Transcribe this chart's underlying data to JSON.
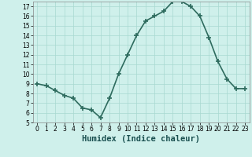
{
  "x": [
    0,
    1,
    2,
    3,
    4,
    5,
    6,
    7,
    8,
    9,
    10,
    11,
    12,
    13,
    14,
    15,
    16,
    17,
    18,
    19,
    20,
    21,
    22,
    23
  ],
  "y": [
    9.0,
    8.8,
    8.3,
    7.8,
    7.5,
    6.5,
    6.3,
    5.5,
    7.5,
    10.0,
    12.0,
    14.0,
    15.5,
    16.0,
    16.5,
    17.5,
    17.5,
    17.0,
    16.0,
    13.8,
    11.3,
    9.5,
    8.5,
    8.5
  ],
  "line_color": "#2e6b5e",
  "marker": "+",
  "marker_size": 4,
  "linewidth": 1.2,
  "background_color": "#cff0eb",
  "grid_color": "#a8d8d0",
  "xlabel": "Humidex (Indice chaleur)",
  "xlim": [
    -0.5,
    23.5
  ],
  "ylim": [
    5,
    17.5
  ],
  "yticks": [
    5,
    6,
    7,
    8,
    9,
    10,
    11,
    12,
    13,
    14,
    15,
    16,
    17
  ],
  "xticks": [
    0,
    1,
    2,
    3,
    4,
    5,
    6,
    7,
    8,
    9,
    10,
    11,
    12,
    13,
    14,
    15,
    16,
    17,
    18,
    19,
    20,
    21,
    22,
    23
  ],
  "tick_fontsize": 5.5,
  "xlabel_fontsize": 7.5
}
